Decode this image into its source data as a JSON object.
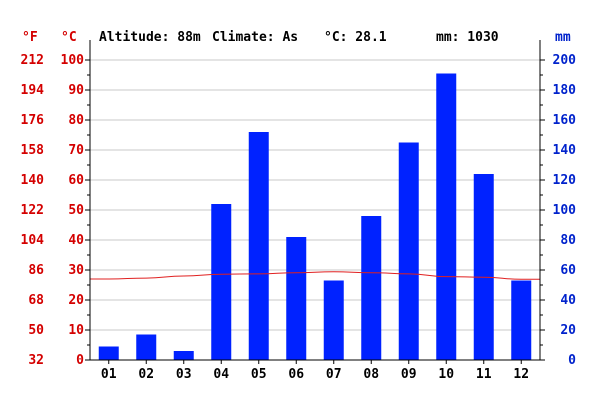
{
  "header": {
    "altitude": "Altitude: 88m",
    "climate": "Climate: As",
    "temp": "°C: 28.1",
    "precip": "mm: 1030"
  },
  "axis_titles": {
    "fahrenheit": "°F",
    "celsius": "°C",
    "mm": "mm"
  },
  "colors": {
    "bars": "#0022ff",
    "temperature_line": "#e02020",
    "left_axis_text": "#d40000",
    "right_axis_text": "#0022cc"
  },
  "chart_data": {
    "type": "bar",
    "categories": [
      "01",
      "02",
      "03",
      "04",
      "05",
      "06",
      "07",
      "08",
      "09",
      "10",
      "11",
      "12"
    ],
    "series": [
      {
        "axis": "mm",
        "values": [
          9,
          17,
          6,
          104,
          152,
          82,
          53,
          96,
          145,
          191,
          124,
          53
        ]
      },
      {
        "axis": "celsius",
        "values": [
          27,
          27.3,
          28,
          28.6,
          28.7,
          29.1,
          29.4,
          29.1,
          28.7,
          27.8,
          27.6,
          26.9
        ]
      }
    ],
    "y_left_celsius": {
      "ticks": [
        "0",
        "10",
        "20",
        "30",
        "40",
        "50",
        "60",
        "70",
        "80",
        "90",
        "100"
      ],
      "range": [
        0,
        100
      ]
    },
    "y_left_fahrenheit": {
      "ticks": [
        "32",
        "50",
        "68",
        "86",
        "104",
        "122",
        "140",
        "158",
        "176",
        "194",
        "212"
      ]
    },
    "y_right_mm": {
      "ticks": [
        "0",
        "20",
        "40",
        "60",
        "80",
        "100",
        "120",
        "140",
        "160",
        "180",
        "200"
      ],
      "range": [
        0,
        200
      ]
    },
    "grid": true
  }
}
